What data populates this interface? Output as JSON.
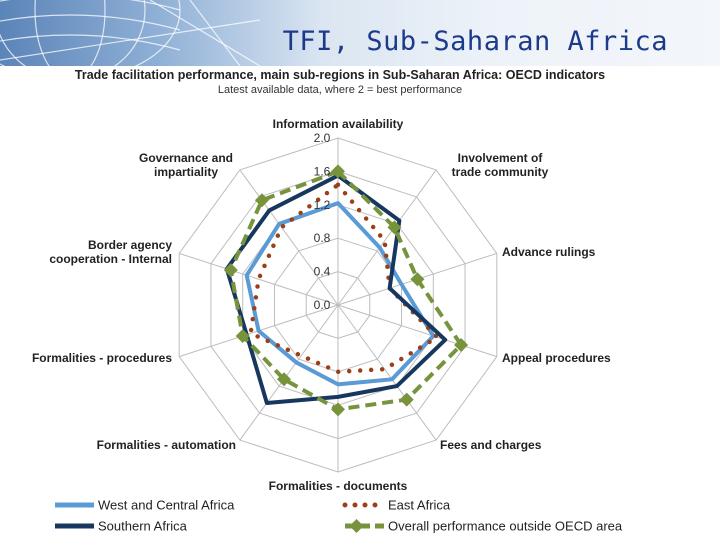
{
  "header": {
    "title": "TFI, Sub-Saharan Africa"
  },
  "chart_data": {
    "type": "radar",
    "title": "Trade facilitation performance, main sub-regions in Sub-Saharan Africa: OECD indicators",
    "subtitle": "Latest available data, where 2 = best performance",
    "axes": [
      "Information availability",
      "Involvement of trade community",
      "Advance rulings",
      "Appeal procedures",
      "Fees and charges",
      "Formalities - documents",
      "Formalities - automation",
      "Formalities - procedures",
      "Border agency cooperation - Internal",
      "Governance and impartiality"
    ],
    "rlim": [
      0,
      2
    ],
    "ticks": [
      "0.0",
      "0.4",
      "0.8",
      "1.2",
      "1.6",
      "2.0"
    ],
    "tick_values": [
      0,
      0.4,
      0.8,
      1.2,
      1.6,
      2.0
    ],
    "grid": true,
    "legend_position": "bottom",
    "series": [
      {
        "name": "West and Central Africa",
        "color": "#5b9bd5",
        "style": "solid",
        "values": [
          1.22,
          0.85,
          0.8,
          1.2,
          1.1,
          0.95,
          0.85,
          1.0,
          1.15,
          1.2
        ]
      },
      {
        "name": "East Africa",
        "color": "#9c3f17",
        "style": "dotted",
        "values": [
          1.44,
          0.95,
          0.65,
          1.25,
          0.95,
          0.8,
          0.75,
          1.1,
          1.0,
          1.15
        ]
      },
      {
        "name": "Southern Africa",
        "color": "#17375e",
        "style": "solid",
        "values": [
          1.55,
          1.25,
          0.65,
          1.35,
          1.2,
          1.1,
          1.45,
          1.15,
          1.4,
          1.4
        ]
      },
      {
        "name": "Overall performance outside OECD area",
        "color": "#77933c",
        "style": "dashed",
        "values": [
          1.6,
          1.15,
          1.0,
          1.55,
          1.4,
          1.25,
          1.1,
          1.2,
          1.35,
          1.55
        ]
      }
    ]
  }
}
